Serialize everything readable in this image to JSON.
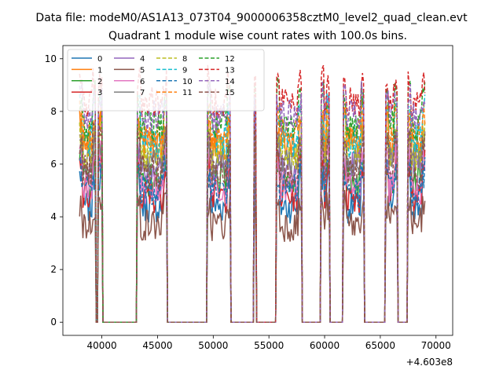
{
  "figure": {
    "suptitle": "Data file: modeM0/AS1A13_073T04_9000006358cztM0_level2_quad_clean.evt",
    "offset_label": "+4.603e8"
  },
  "chart_data": {
    "type": "line",
    "title": "Quadrant 1 module wise count rates with 100.0s bins.",
    "xlabel": "",
    "ylabel": "",
    "x_offset": 460300000,
    "xlim": [
      36500,
      71500
    ],
    "ylim": [
      -0.5,
      10.5
    ],
    "xticks": [
      40000,
      45000,
      50000,
      55000,
      60000,
      65000,
      70000
    ],
    "xtick_labels": [
      "40000",
      "45000",
      "50000",
      "55000",
      "60000",
      "65000",
      "70000"
    ],
    "yticks": [
      0,
      2,
      4,
      6,
      8,
      10
    ],
    "ytick_labels": [
      "0",
      "2",
      "4",
      "6",
      "8",
      "10"
    ],
    "grid": false,
    "legend": {
      "placement": "top-left",
      "columns": 4
    },
    "segments": [
      {
        "start": 38000,
        "end": 39400
      },
      {
        "start": 39700,
        "end": 40000
      },
      {
        "start": 43200,
        "end": 45800
      },
      {
        "start": 49500,
        "end": 51500
      },
      {
        "start": 53700,
        "end": 53800
      },
      {
        "start": 55700,
        "end": 57900
      },
      {
        "start": 59700,
        "end": 60400
      },
      {
        "start": 61700,
        "end": 63500
      },
      {
        "start": 65500,
        "end": 66500
      },
      {
        "start": 67500,
        "end": 69000
      }
    ],
    "series": [
      {
        "name": "0",
        "color": "#1f77b4",
        "style": "solid",
        "level": 4.4
      },
      {
        "name": "1",
        "color": "#ff7f0e",
        "style": "solid",
        "level": 6.8
      },
      {
        "name": "2",
        "color": "#2ca02c",
        "style": "solid",
        "level": 5.4
      },
      {
        "name": "3",
        "color": "#d62728",
        "style": "solid",
        "level": 4.8
      },
      {
        "name": "4",
        "color": "#9467bd",
        "style": "solid",
        "level": 6.0
      },
      {
        "name": "5",
        "color": "#8c564b",
        "style": "solid",
        "level": 3.7
      },
      {
        "name": "6",
        "color": "#e377c2",
        "style": "solid",
        "level": 5.1
      },
      {
        "name": "7",
        "color": "#7f7f7f",
        "style": "solid",
        "level": 6.2
      },
      {
        "name": "8",
        "color": "#bcbd22",
        "style": "dashed",
        "level": 6.4
      },
      {
        "name": "9",
        "color": "#17becf",
        "style": "dashed",
        "level": 6.9
      },
      {
        "name": "10",
        "color": "#1f77b4",
        "style": "dashed",
        "level": 5.0
      },
      {
        "name": "11",
        "color": "#ff7f0e",
        "style": "dashed",
        "level": 7.1
      },
      {
        "name": "12",
        "color": "#2ca02c",
        "style": "dashed",
        "level": 7.5
      },
      {
        "name": "13",
        "color": "#d62728",
        "style": "dashed",
        "level": 8.4
      },
      {
        "name": "14",
        "color": "#9467bd",
        "style": "dashed",
        "level": 7.8
      },
      {
        "name": "15",
        "color": "#8c564b",
        "style": "dashed",
        "level": 5.7
      }
    ]
  }
}
